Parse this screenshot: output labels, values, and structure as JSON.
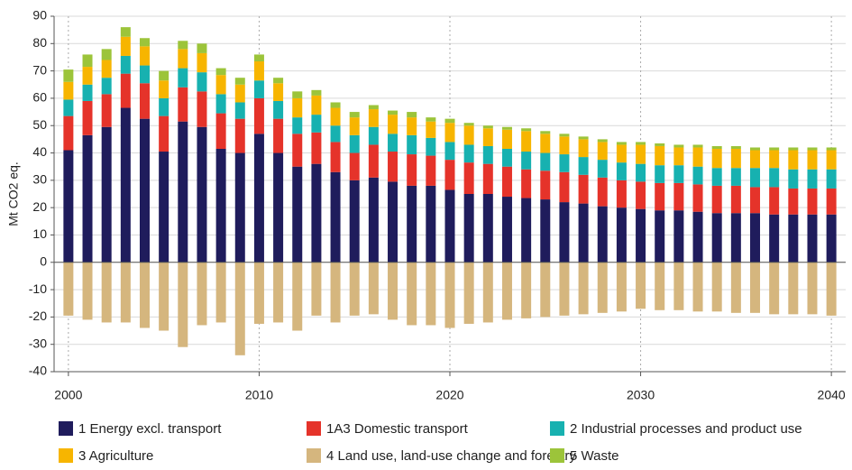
{
  "chart_data": {
    "type": "bar",
    "stacked": true,
    "y_label": "Mt CO2 eq.",
    "x": [
      2000,
      2001,
      2002,
      2003,
      2004,
      2005,
      2006,
      2007,
      2008,
      2009,
      2010,
      2011,
      2012,
      2013,
      2014,
      2015,
      2016,
      2017,
      2018,
      2019,
      2020,
      2021,
      2022,
      2023,
      2024,
      2025,
      2026,
      2027,
      2028,
      2029,
      2030,
      2031,
      2032,
      2033,
      2034,
      2035,
      2036,
      2037,
      2038,
      2039,
      2040
    ],
    "xlim": [
      1999.25,
      2040.75
    ],
    "xticks": [
      2000,
      2010,
      2020,
      2030,
      2040
    ],
    "ylim": [
      -40,
      90
    ],
    "yticks": [
      -40,
      -30,
      -20,
      -10,
      0,
      10,
      20,
      30,
      40,
      50,
      60,
      70,
      80,
      90
    ],
    "grid": true,
    "legend": "bottom",
    "series": [
      {
        "name": "1 Energy excl. transport",
        "color": "#1f1c5c",
        "values": [
          41,
          46.5,
          49.5,
          56.5,
          52.5,
          40.5,
          51.5,
          49.5,
          41.5,
          40,
          47,
          40,
          35,
          36,
          33,
          30,
          31,
          29.5,
          28,
          28,
          26.5,
          25,
          25,
          24,
          23.5,
          23,
          22,
          21.5,
          20.5,
          20,
          19.5,
          19,
          19,
          18.5,
          18,
          18,
          18,
          17.5,
          17.5,
          17.5,
          17.5
        ]
      },
      {
        "name": "1A3 Domestic transport",
        "color": "#e5332a",
        "values": [
          12.5,
          12.5,
          12,
          12.5,
          13,
          13,
          12.5,
          13,
          13,
          12.5,
          13,
          12.5,
          12,
          11.5,
          11,
          10,
          12,
          11,
          11.5,
          11,
          11,
          11.5,
          11,
          11,
          10.5,
          10.5,
          11,
          10.5,
          10.5,
          10,
          10,
          10,
          10,
          10,
          10,
          10,
          9.5,
          10,
          9.5,
          9.5,
          9.5
        ]
      },
      {
        "name": "2 Industrial processes and product use",
        "color": "#17b1b0",
        "values": [
          6,
          6,
          6,
          6.5,
          6.5,
          6.5,
          7,
          7,
          7,
          6,
          6.5,
          6.5,
          6,
          6.5,
          6,
          6.5,
          6.5,
          6.5,
          7,
          6.5,
          6.5,
          6.5,
          6.5,
          6.5,
          6.5,
          6.5,
          6.5,
          6.5,
          6.5,
          6.5,
          6.5,
          6.5,
          6.5,
          6.5,
          6.5,
          6.5,
          7,
          7,
          7,
          7,
          7
        ]
      },
      {
        "name": "3 Agriculture",
        "color": "#f7b500",
        "values": [
          6.5,
          6.5,
          6.5,
          7,
          7,
          6.5,
          7,
          7,
          7,
          6.5,
          7,
          6.5,
          7,
          7,
          6.5,
          6.5,
          6.5,
          7,
          6.5,
          6,
          7,
          7,
          6.5,
          7,
          7.5,
          7,
          6.5,
          6.5,
          6.5,
          6.5,
          7,
          7,
          6.5,
          7,
          7,
          7,
          6.5,
          6.5,
          7,
          7,
          7
        ]
      },
      {
        "name": "4 Land use, land-use change and forestry",
        "color": "#d5b67e",
        "values": [
          -19.5,
          -21,
          -22,
          -22,
          -24,
          -25,
          -31,
          -23,
          -22,
          -34,
          -22.5,
          -22,
          -25,
          -19.5,
          -22,
          -19.5,
          -19,
          -21,
          -23,
          -23,
          -24,
          -22.5,
          -22,
          -21,
          -20.5,
          -20,
          -19.5,
          -19,
          -18.5,
          -18,
          -17,
          -17.5,
          -17.5,
          -18,
          -18,
          -18.5,
          -18.5,
          -19,
          -19,
          -19,
          -19.5
        ]
      },
      {
        "name": "5 Waste",
        "color": "#9cc43a",
        "values": [
          4.5,
          4.5,
          4,
          3.5,
          3,
          3.5,
          3,
          3.5,
          2.5,
          2.5,
          2.5,
          2,
          2.5,
          2,
          2,
          2,
          1.5,
          1.5,
          2,
          1.5,
          1.5,
          1,
          1,
          1,
          1,
          1,
          1,
          1,
          1,
          1,
          1,
          1,
          1,
          1,
          1,
          1,
          1,
          1,
          1,
          1,
          1
        ]
      }
    ]
  }
}
